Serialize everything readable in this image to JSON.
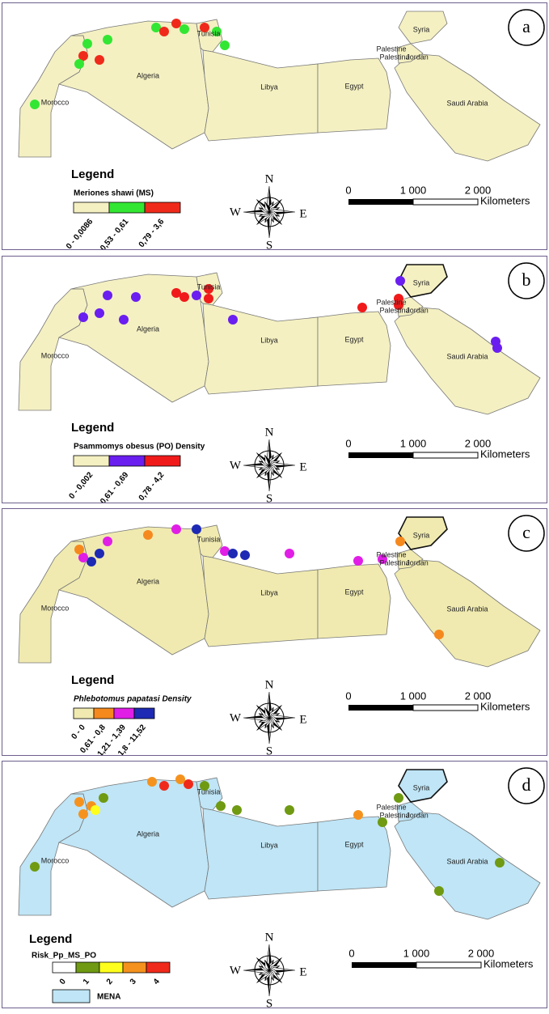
{
  "panels": [
    {
      "label": "a",
      "countries": [
        "Tunisia",
        "Morocco",
        "Algeria",
        "Libya",
        "Egypt",
        "Palestine",
        "Palestina",
        "Jordan",
        "Syria",
        "Saudi Arabia"
      ],
      "legend": {
        "title": "Legend",
        "subtitle": "Meriones shawi (MS)",
        "classes": [
          {
            "label": "0 - 0,0086",
            "color": "#f4f0c2"
          },
          {
            "label": "0,53 - 0,61",
            "color": "#33e633"
          },
          {
            "label": "0,79 - 3,6",
            "color": "#f02a1a"
          }
        ]
      },
      "compass": {
        "n": "N",
        "e": "E",
        "s": "S",
        "w": "W"
      },
      "scale": {
        "ticks": [
          "0",
          "1 000",
          "2 000"
        ],
        "unit": "Kilometers"
      }
    },
    {
      "label": "b",
      "countries": [
        "Tunisia",
        "Morocco",
        "Algeria",
        "Libya",
        "Egypt",
        "Palestine",
        "Palestina",
        "Jordan",
        "Syria",
        "Saudi Arabia"
      ],
      "legend": {
        "title": "Legend",
        "subtitle": "Psammomys obesus (PO) Density",
        "classes": [
          {
            "label": "0 - 0,002",
            "color": "#f4f0c2"
          },
          {
            "label": "0,61 - 0,69",
            "color": "#6a1ef0"
          },
          {
            "label": "0,78 - 4,2",
            "color": "#f01a1a"
          }
        ]
      },
      "compass": {
        "n": "N",
        "e": "E",
        "s": "S",
        "w": "W"
      },
      "scale": {
        "ticks": [
          "0",
          "1 000",
          "2 000"
        ],
        "unit": "Kilometers"
      }
    },
    {
      "label": "c",
      "countries": [
        "Tunisia",
        "Morocco",
        "Algeria",
        "Libya",
        "Egypt",
        "Palestine",
        "Palestina",
        "Jordan",
        "Syria",
        "Saudi Arabia"
      ],
      "legend": {
        "title": "Legend",
        "subtitle": "Phlebotomus papatasi Density",
        "classes": [
          {
            "label": "0 - 0",
            "color": "#f0eab0"
          },
          {
            "label": "0,61 - 0,8",
            "color": "#f5891e"
          },
          {
            "label": "1,21 - 1,39",
            "color": "#e01ee6"
          },
          {
            "label": "1,8 - 11,52",
            "color": "#1e2ab4"
          }
        ]
      },
      "compass": {
        "n": "N",
        "e": "E",
        "s": "S",
        "w": "W"
      },
      "scale": {
        "ticks": [
          "0",
          "1 000",
          "2 000"
        ],
        "unit": "Kilometers"
      }
    },
    {
      "label": "d",
      "countries": [
        "Tunisia",
        "Morocco",
        "Algeria",
        "Libya",
        "Egypt",
        "Palestine",
        "Palestina",
        "Jordan",
        "Syria",
        "Saudi Arabia"
      ],
      "legend": {
        "title": "Legend",
        "subtitle": "Risk_Pp_MS_PO",
        "classes": [
          {
            "label": "0",
            "color": "#ffffff"
          },
          {
            "label": "1",
            "color": "#6f9a12"
          },
          {
            "label": "2",
            "color": "#ffff1e"
          },
          {
            "label": "3",
            "color": "#f5921e"
          },
          {
            "label": "4",
            "color": "#f02a1a"
          }
        ],
        "base": "MENA"
      },
      "compass": {
        "n": "N",
        "e": "E",
        "s": "S",
        "w": "W"
      },
      "scale": {
        "ticks": [
          "0",
          "1 000",
          "2 000"
        ],
        "unit": "Kilometers"
      }
    }
  ]
}
